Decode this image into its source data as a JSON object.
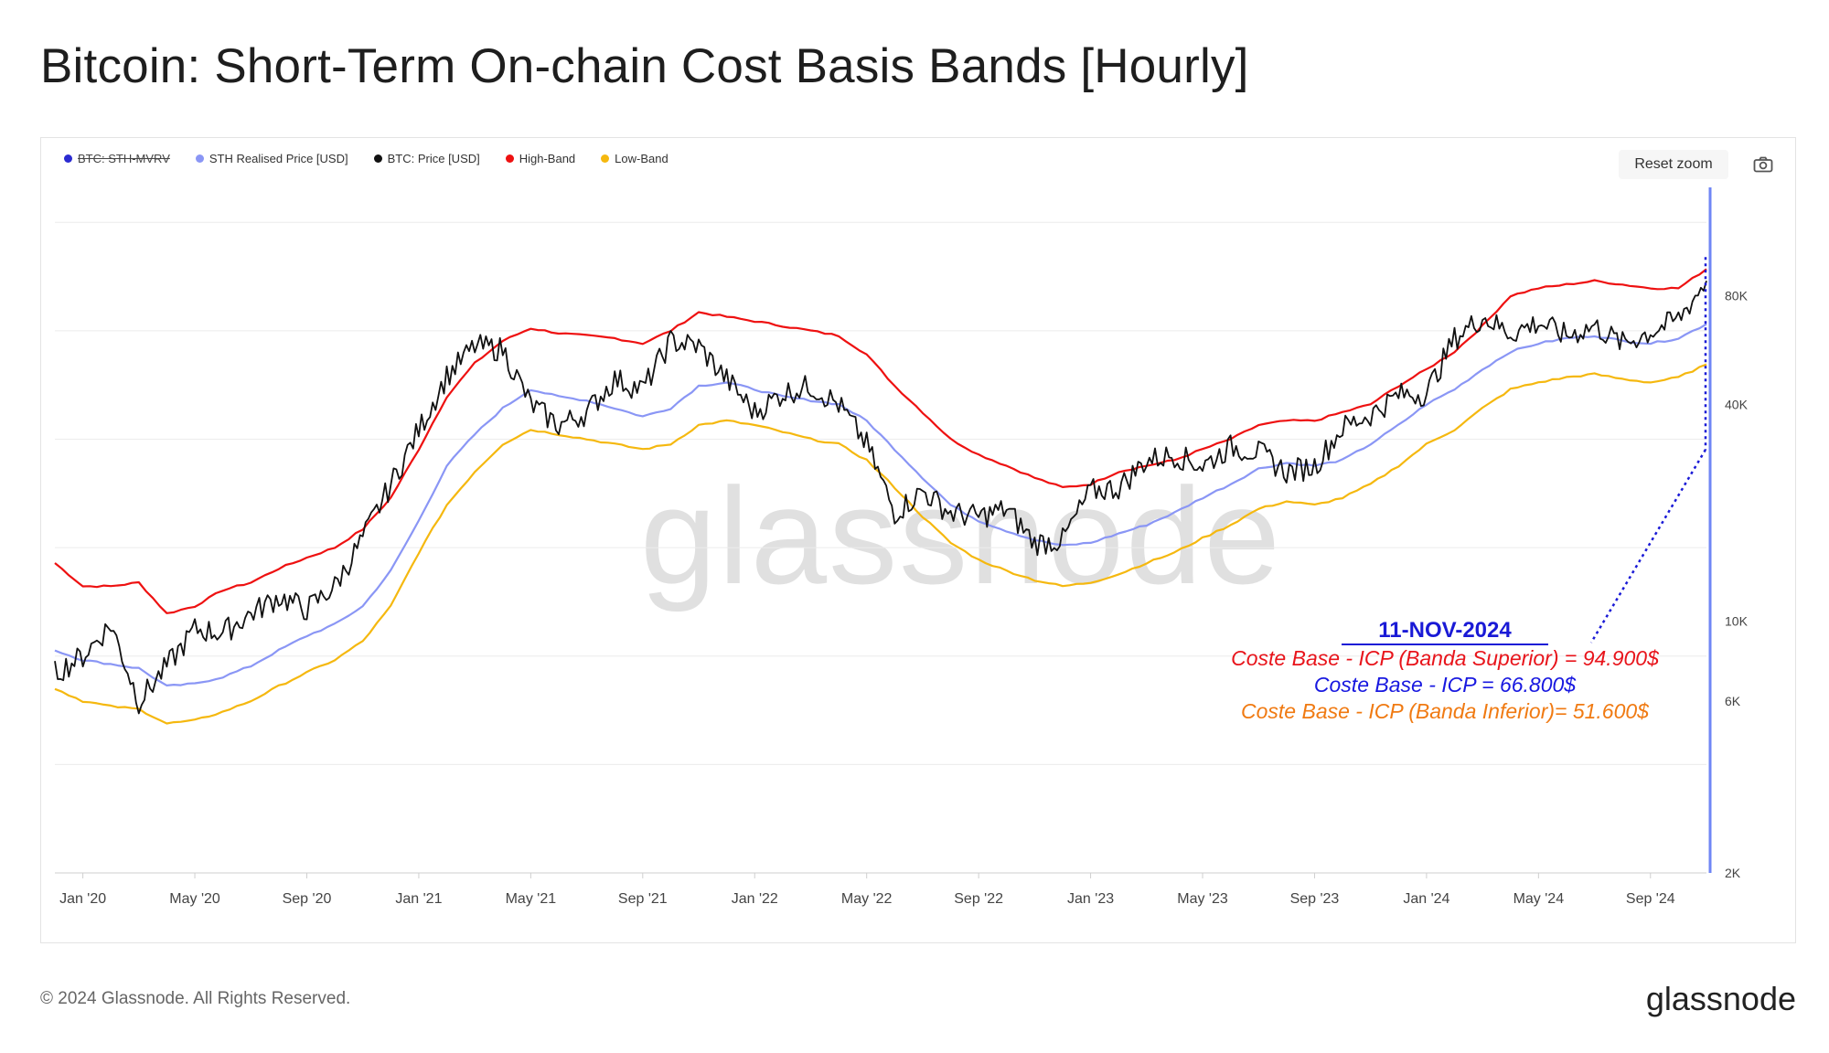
{
  "title": "Bitcoin: Short-Term On-chain Cost Basis Bands [Hourly]",
  "legend": [
    {
      "label": "BTC: STH-MVRV",
      "color": "#2b2bd1",
      "disabled": true
    },
    {
      "label": "STH Realised Price [USD]",
      "color": "#8a96f5",
      "disabled": false
    },
    {
      "label": "BTC: Price [USD]",
      "color": "#111111",
      "disabled": false
    },
    {
      "label": "High-Band",
      "color": "#ee1111",
      "disabled": false
    },
    {
      "label": "Low-Band",
      "color": "#f5b80f",
      "disabled": false
    }
  ],
  "toolbar": {
    "reset_zoom_label": "Reset zoom",
    "camera_icon": "camera-icon"
  },
  "watermark": "glassnode",
  "annotation": {
    "date": "11-NOV-2024",
    "line_high": "Coste Base - ICP (Banda Superior) = 94.900$",
    "line_mid": "Coste Base - ICP = 66.800$",
    "line_low": "Coste Base - ICP (Banda Inferior)= 51.600$",
    "color_high": "#e8141b",
    "color_mid": "#1818e0",
    "color_low": "#f07a12"
  },
  "footer": {
    "copyright": "© 2024 Glassnode. All Rights Reserved.",
    "logo": "glassnode"
  },
  "chart_data": {
    "type": "line",
    "y_scale": "log",
    "ylim": [
      2000,
      160000
    ],
    "y_ticks": [
      {
        "value": 2000,
        "label": "2K"
      },
      {
        "value": 6000,
        "label": "6K"
      },
      {
        "value": 10000,
        "label": "10K"
      },
      {
        "value": 40000,
        "label": "40K"
      },
      {
        "value": 80000,
        "label": "80K"
      }
    ],
    "x_ticks": [
      "Jan '20",
      "May '20",
      "Sep '20",
      "Jan '21",
      "May '21",
      "Sep '21",
      "Jan '22",
      "May '22",
      "Sep '22",
      "Jan '23",
      "May '23",
      "Sep '23",
      "Jan '24",
      "May '24",
      "Sep '24"
    ],
    "x_tick_dates": [
      "2020-01",
      "2020-05",
      "2020-09",
      "2021-01",
      "2021-05",
      "2021-09",
      "2022-01",
      "2022-05",
      "2022-09",
      "2023-01",
      "2023-05",
      "2023-09",
      "2024-01",
      "2024-05",
      "2024-09"
    ],
    "x": [
      "2019-12",
      "2020-01",
      "2020-02",
      "2020-03",
      "2020-04",
      "2020-05",
      "2020-06",
      "2020-07",
      "2020-08",
      "2020-09",
      "2020-10",
      "2020-11",
      "2020-12",
      "2021-01",
      "2021-02",
      "2021-03",
      "2021-04",
      "2021-05",
      "2021-06",
      "2021-07",
      "2021-08",
      "2021-09",
      "2021-10",
      "2021-11",
      "2021-12",
      "2022-01",
      "2022-02",
      "2022-03",
      "2022-04",
      "2022-05",
      "2022-06",
      "2022-07",
      "2022-08",
      "2022-09",
      "2022-10",
      "2022-11",
      "2022-12",
      "2023-01",
      "2023-02",
      "2023-03",
      "2023-04",
      "2023-05",
      "2023-06",
      "2023-07",
      "2023-08",
      "2023-09",
      "2023-10",
      "2023-11",
      "2023-12",
      "2024-01",
      "2024-02",
      "2024-03",
      "2024-04",
      "2024-05",
      "2024-06",
      "2024-07",
      "2024-08",
      "2024-09",
      "2024-10",
      "2024-11"
    ],
    "series": [
      {
        "name": "High-Band",
        "color": "#ee1111",
        "values": [
          14500,
          12500,
          12500,
          12800,
          10500,
          11000,
          12200,
          12800,
          14000,
          15000,
          16000,
          18000,
          22000,
          30000,
          42000,
          52000,
          60000,
          65000,
          63000,
          62000,
          61000,
          59000,
          64000,
          72000,
          70000,
          68000,
          66000,
          64000,
          62000,
          55000,
          45000,
          38000,
          32000,
          29000,
          27000,
          25000,
          23500,
          24000,
          26000,
          27000,
          28000,
          30000,
          32000,
          35000,
          36000,
          36000,
          38000,
          40000,
          45000,
          50000,
          56000,
          66000,
          80000,
          84000,
          86000,
          88000,
          86000,
          84000,
          84000,
          94900
        ]
      },
      {
        "name": "STH Realised Price [USD]",
        "color": "#8a96f5",
        "values": [
          8300,
          7800,
          7600,
          7400,
          6600,
          6700,
          7000,
          7500,
          8300,
          9100,
          9800,
          11000,
          13800,
          19000,
          27000,
          33000,
          39000,
          44000,
          42000,
          41000,
          39000,
          37000,
          39000,
          45000,
          46000,
          44000,
          42000,
          41000,
          40000,
          36000,
          30000,
          25000,
          21000,
          19000,
          17800,
          16800,
          16200,
          16500,
          17500,
          18500,
          20000,
          22000,
          24000,
          26500,
          27500,
          27000,
          28000,
          31000,
          35000,
          40000,
          44000,
          50000,
          56000,
          59000,
          61000,
          62000,
          60000,
          59000,
          61000,
          66800
        ]
      },
      {
        "name": "Low-Band",
        "color": "#f5b80f",
        "values": [
          6500,
          6000,
          5800,
          5700,
          5200,
          5300,
          5600,
          6000,
          6600,
          7200,
          7800,
          8800,
          11000,
          15500,
          21000,
          26000,
          31000,
          34000,
          33000,
          32000,
          31000,
          30000,
          31000,
          35000,
          36000,
          35000,
          33500,
          32000,
          31000,
          28000,
          23500,
          19500,
          16500,
          14800,
          13800,
          13000,
          12500,
          12800,
          13500,
          14500,
          15500,
          17000,
          18500,
          20500,
          21500,
          21000,
          22000,
          24000,
          27000,
          31000,
          34000,
          39000,
          44000,
          46000,
          47500,
          48500,
          47000,
          46000,
          47500,
          51600
        ]
      },
      {
        "name": "BTC: Price [USD]",
        "color": "#111111",
        "values": [
          7200,
          8000,
          9800,
          6000,
          7500,
          9500,
          9300,
          10500,
          11700,
          10800,
          12500,
          17000,
          24000,
          34000,
          48000,
          58000,
          57000,
          40000,
          35000,
          38000,
          47000,
          44000,
          60000,
          58000,
          47000,
          38000,
          43000,
          45000,
          40000,
          31000,
          20000,
          23000,
          20000,
          19500,
          20500,
          16500,
          16800,
          23000,
          23500,
          28000,
          29000,
          27000,
          30500,
          29500,
          26000,
          27000,
          34500,
          37500,
          42500,
          43000,
          61000,
          70000,
          63000,
          67500,
          62000,
          66000,
          59000,
          63500,
          69000,
          88000
        ]
      }
    ]
  }
}
